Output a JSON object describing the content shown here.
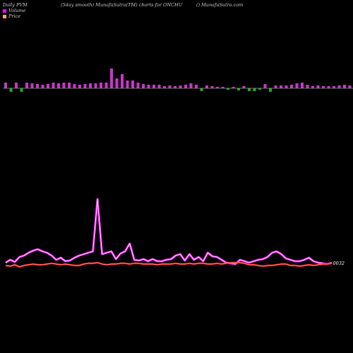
{
  "header": {
    "left": "Daily PVM",
    "center": "(5day smooth) MunafaSutra(TM) charts for ONCHU",
    "right": "() MunafaSutra.com"
  },
  "legend": [
    {
      "label": "Volume",
      "color": "#ff00ff"
    },
    {
      "label": "Price",
      "color": "#ffa07a"
    }
  ],
  "price_label": "0032",
  "colors": {
    "background": "#000000",
    "zero_line": "#999999",
    "up_bar": "#cc33cc",
    "down_bar": "#22aa22",
    "volume_line": "#ff22ff",
    "price_line": "#ff2222",
    "smooth_line": "#ffffff"
  },
  "chart_data": {
    "type": "bar",
    "volume_bars": [
      8,
      -5,
      8,
      -5,
      8,
      7,
      6,
      5,
      6,
      8,
      7,
      8,
      8,
      6,
      5,
      6,
      7,
      7,
      8,
      8,
      28,
      14,
      20,
      11,
      11,
      8,
      6,
      5,
      5,
      5,
      3,
      4,
      3,
      4,
      5,
      7,
      5,
      -4,
      4,
      3,
      2,
      2,
      -2,
      2,
      -3,
      3,
      -4,
      -4,
      -2,
      6,
      -5,
      4,
      4,
      4,
      5,
      7,
      8,
      5,
      3,
      4,
      3,
      3,
      3,
      4,
      5,
      4,
      8,
      5,
      4,
      -3,
      2,
      2
    ],
    "volume_line": [
      372,
      368,
      371,
      364,
      362,
      358,
      355,
      353,
      356,
      358,
      362,
      368,
      365,
      370,
      369,
      365,
      362,
      360,
      358,
      356,
      357,
      360,
      358,
      356,
      367,
      359,
      356,
      345,
      368,
      369,
      367,
      370,
      367,
      370,
      370,
      368,
      367,
      362,
      360,
      369,
      360,
      368,
      364,
      370,
      358,
      363,
      364,
      368,
      372,
      373,
      374,
      368,
      370,
      372,
      370,
      368,
      367,
      364,
      358,
      356,
      360,
      366,
      368,
      370,
      370,
      368,
      365,
      370,
      372,
      373,
      374,
      372
    ],
    "volume_spike": {
      "index": 20,
      "value": 282
    },
    "price_line": [
      376,
      377,
      375,
      378,
      376,
      375,
      374,
      375,
      375,
      374,
      373,
      374,
      375,
      374,
      375,
      376,
      376,
      374,
      373,
      373,
      372,
      374,
      375,
      374,
      374,
      373,
      373,
      374,
      373,
      373,
      374,
      374,
      374,
      375,
      374,
      374,
      374,
      373,
      374,
      374,
      373,
      374,
      373,
      373,
      374,
      374,
      373,
      374,
      373,
      372,
      372,
      372,
      373,
      375,
      375,
      376,
      377,
      376,
      376,
      375,
      374,
      374,
      376,
      376,
      377,
      376,
      375,
      376,
      375,
      374,
      374,
      373
    ]
  }
}
